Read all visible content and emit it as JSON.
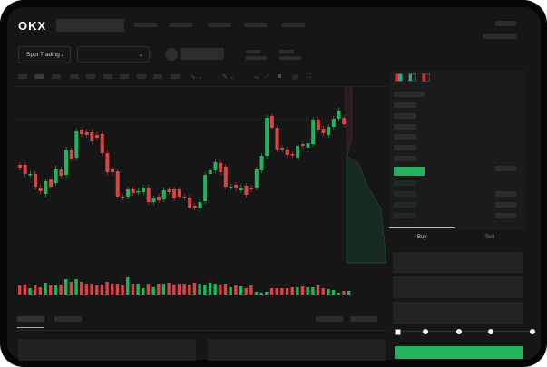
{
  "header": {
    "logo": "OKX"
  },
  "toolbar": {
    "market_selector": "Spot Trading",
    "market_chevron": "⌄",
    "pair_chevron": "⌄"
  },
  "trade_panel": {
    "tabs": [
      {
        "label": "Buy",
        "active": true
      },
      {
        "label": "Sell",
        "active": false
      }
    ]
  },
  "colors": {
    "up": "#22b45d",
    "down": "#d84545",
    "background": "#161616",
    "action_button": "#22b45d"
  },
  "icons": [
    "order-book-both-icon",
    "order-book-bids-icon",
    "order-book-asks-icon",
    "indicator-icon",
    "drawing-icon",
    "ruler-icon",
    "camera-icon",
    "settings-icon",
    "fullscreen-icon"
  ],
  "chart_data": {
    "type": "candlestick",
    "candles": [
      [
        58,
        55
      ],
      [
        58,
        48
      ],
      [
        47,
        48
      ],
      [
        48,
        34
      ],
      [
        33,
        29
      ],
      [
        26,
        40
      ],
      [
        42,
        34
      ],
      [
        38,
        54
      ],
      [
        53,
        46
      ],
      [
        47,
        75
      ],
      [
        74,
        65
      ],
      [
        66,
        95
      ],
      [
        97,
        92
      ],
      [
        94,
        91
      ],
      [
        94,
        84
      ],
      [
        91,
        88
      ],
      [
        92,
        71
      ],
      [
        71,
        50
      ],
      [
        53,
        50
      ],
      [
        51,
        23
      ],
      [
        23,
        22
      ],
      [
        23,
        31
      ],
      [
        31,
        27
      ],
      [
        28,
        29
      ],
      [
        28,
        33
      ],
      [
        33,
        17
      ],
      [
        17,
        21
      ],
      [
        23,
        19
      ],
      [
        20,
        30
      ],
      [
        31,
        28
      ],
      [
        31,
        21
      ],
      [
        31,
        23
      ],
      [
        23,
        22
      ],
      [
        22,
        11
      ],
      [
        13,
        11
      ],
      [
        10,
        17
      ],
      [
        18,
        47
      ],
      [
        48,
        52
      ],
      [
        52,
        61
      ],
      [
        60,
        50
      ],
      [
        56,
        34
      ],
      [
        33,
        34
      ],
      [
        36,
        32
      ],
      [
        30,
        33
      ],
      [
        35,
        25
      ],
      [
        33,
        31
      ],
      [
        33,
        53
      ],
      [
        52,
        68
      ],
      [
        68,
        110
      ],
      [
        112,
        99
      ],
      [
        99,
        75
      ],
      [
        77,
        75
      ],
      [
        75,
        69
      ],
      [
        70,
        69
      ],
      [
        66,
        79
      ],
      [
        81,
        79
      ],
      [
        77,
        82
      ],
      [
        81,
        108
      ],
      [
        108,
        97
      ],
      [
        98,
        93
      ],
      [
        91,
        100
      ],
      [
        100,
        109
      ],
      [
        109,
        118
      ],
      [
        110,
        103
      ],
      [
        101,
        107
      ]
    ],
    "volume": [
      10,
      11,
      7,
      11,
      8,
      13,
      10,
      10,
      11,
      17,
      14,
      17,
      14,
      12,
      12,
      10,
      11,
      14,
      12,
      12,
      10,
      19,
      12,
      12,
      7,
      12,
      8,
      12,
      12,
      13,
      11,
      12,
      12,
      11,
      13,
      12,
      11,
      13,
      12,
      11,
      12,
      8,
      10,
      9,
      7,
      10,
      3,
      2,
      3,
      7,
      7,
      7,
      7,
      8,
      8,
      9,
      8,
      8,
      10,
      7,
      6,
      5,
      2,
      4,
      4
    ],
    "slider_level_percent": 0
  }
}
